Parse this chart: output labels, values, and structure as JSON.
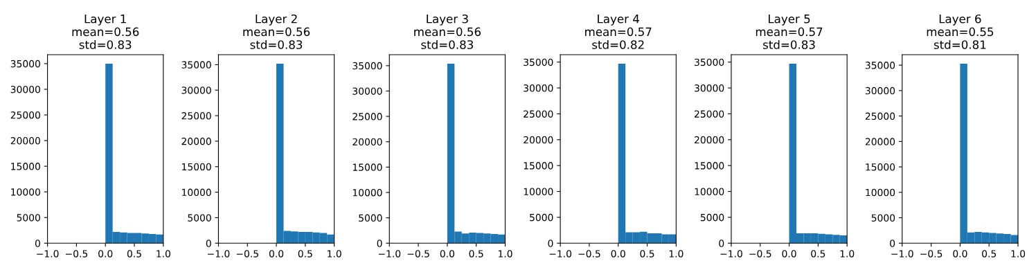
{
  "chart_data": [
    {
      "type": "histogram",
      "title": "Layer 1\nmean=0.56\nstd=0.83",
      "bins": [
        0,
        0.125,
        0.25,
        0.375,
        0.5,
        0.625,
        0.75,
        0.875,
        1.0
      ],
      "values": [
        35000,
        2200,
        2100,
        2000,
        2000,
        1900,
        1800,
        1700
      ],
      "color": "#1f77b4",
      "xlim": [
        -1,
        1
      ],
      "xticks": [
        {
          "value": -1,
          "label": "−1.0"
        },
        {
          "value": -0.5,
          "label": "−0.5"
        },
        {
          "value": 0,
          "label": "0.0"
        },
        {
          "value": 0.5,
          "label": "0.5"
        },
        {
          "value": 1,
          "label": "1.0"
        }
      ],
      "ylim": [
        0,
        36750
      ],
      "yticks": [
        0,
        5000,
        10000,
        15000,
        20000,
        25000,
        30000,
        35000
      ],
      "grid": false
    },
    {
      "type": "histogram",
      "title": "Layer 2\nmean=0.56\nstd=0.83",
      "bins": [
        0,
        0.125,
        0.25,
        0.375,
        0.5,
        0.625,
        0.75,
        0.875,
        1.0
      ],
      "values": [
        35200,
        2400,
        2300,
        2200,
        2200,
        2100,
        2000,
        1700
      ],
      "color": "#1f77b4",
      "xlim": [
        -1,
        1
      ],
      "xticks": [
        {
          "value": -1,
          "label": "−1.0"
        },
        {
          "value": -0.5,
          "label": "−0.5"
        },
        {
          "value": 0,
          "label": "0.0"
        },
        {
          "value": 0.5,
          "label": "0.5"
        },
        {
          "value": 1,
          "label": "1.0"
        }
      ],
      "ylim": [
        0,
        36960
      ],
      "yticks": [
        0,
        5000,
        10000,
        15000,
        20000,
        25000,
        30000,
        35000
      ],
      "grid": false
    },
    {
      "type": "histogram",
      "title": "Layer 3\nmean=0.56\nstd=0.83",
      "bins": [
        0,
        0.125,
        0.25,
        0.375,
        0.5,
        0.625,
        0.75,
        0.875,
        1.0
      ],
      "values": [
        35400,
        2300,
        1900,
        2100,
        2000,
        1900,
        1800,
        1700
      ],
      "color": "#1f77b4",
      "xlim": [
        -1,
        1
      ],
      "xticks": [
        {
          "value": -1,
          "label": "−1.0"
        },
        {
          "value": -0.5,
          "label": "−0.5"
        },
        {
          "value": 0,
          "label": "0.0"
        },
        {
          "value": 0.5,
          "label": "0.5"
        },
        {
          "value": 1,
          "label": "1.0"
        }
      ],
      "ylim": [
        0,
        37170
      ],
      "yticks": [
        0,
        5000,
        10000,
        15000,
        20000,
        25000,
        30000,
        35000
      ],
      "grid": false
    },
    {
      "type": "histogram",
      "title": "Layer 4\nmean=0.57\nstd=0.82",
      "bins": [
        0,
        0.125,
        0.25,
        0.375,
        0.5,
        0.625,
        0.75,
        0.875,
        1.0
      ],
      "values": [
        34700,
        2100,
        2100,
        2200,
        1900,
        1900,
        1700,
        1700
      ],
      "color": "#1f77b4",
      "xlim": [
        -1,
        1
      ],
      "xticks": [
        {
          "value": -1,
          "label": "−1.0"
        },
        {
          "value": -0.5,
          "label": "−0.5"
        },
        {
          "value": 0,
          "label": "0.0"
        },
        {
          "value": 0.5,
          "label": "0.5"
        },
        {
          "value": 1,
          "label": "1.0"
        }
      ],
      "ylim": [
        0,
        36435
      ],
      "yticks": [
        0,
        5000,
        10000,
        15000,
        20000,
        25000,
        30000,
        35000
      ],
      "grid": false
    },
    {
      "type": "histogram",
      "title": "Layer 5\nmean=0.57\nstd=0.83",
      "bins": [
        0,
        0.125,
        0.25,
        0.375,
        0.5,
        0.625,
        0.75,
        0.875,
        1.0
      ],
      "values": [
        34700,
        1900,
        1900,
        1900,
        1800,
        1700,
        1600,
        1500
      ],
      "color": "#1f77b4",
      "xlim": [
        -1,
        1
      ],
      "xticks": [
        {
          "value": -1,
          "label": "−1.0"
        },
        {
          "value": -0.5,
          "label": "−0.5"
        },
        {
          "value": 0,
          "label": "0.0"
        },
        {
          "value": 0.5,
          "label": "0.5"
        },
        {
          "value": 1,
          "label": "1.0"
        }
      ],
      "ylim": [
        0,
        36435
      ],
      "yticks": [
        0,
        5000,
        10000,
        15000,
        20000,
        25000,
        30000,
        35000
      ],
      "grid": false
    },
    {
      "type": "histogram",
      "title": "Layer 6\nmean=0.55\nstd=0.81",
      "bins": [
        0,
        0.125,
        0.25,
        0.375,
        0.5,
        0.625,
        0.75,
        0.875,
        1.0
      ],
      "values": [
        35300,
        2100,
        2200,
        2100,
        2000,
        1900,
        1800,
        1600
      ],
      "color": "#1f77b4",
      "xlim": [
        -1,
        1
      ],
      "xticks": [
        {
          "value": -1,
          "label": "−1.0"
        },
        {
          "value": -0.5,
          "label": "−0.5"
        },
        {
          "value": 0,
          "label": "0.0"
        },
        {
          "value": 0.5,
          "label": "0.5"
        },
        {
          "value": 1,
          "label": "1.0"
        }
      ],
      "ylim": [
        0,
        37065
      ],
      "yticks": [
        0,
        5000,
        10000,
        15000,
        20000,
        25000,
        30000,
        35000
      ],
      "grid": false
    }
  ]
}
